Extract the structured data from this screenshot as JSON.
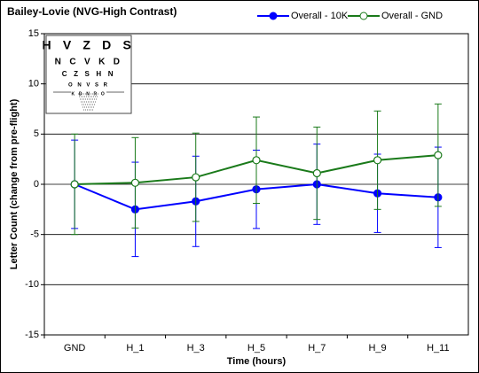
{
  "chart_data": {
    "type": "line",
    "title": "Bailey-Lovie (NVG-High Contrast)",
    "xlabel": "Time (hours)",
    "ylabel": "Letter Count (change from pre-flight)",
    "inset_text": [
      "H V Z D S",
      "N C V K D",
      "C Z S H N",
      "O N V S R",
      "K D N R O"
    ],
    "categories": [
      "GND",
      "H_1",
      "H_3",
      "H_5",
      "H_7",
      "H_9",
      "H_11"
    ],
    "series": [
      {
        "name": "Overall - 10K",
        "color": "#0000ff",
        "marker_fill": "#0000ff",
        "values": [
          0,
          -2.5,
          -1.7,
          -0.5,
          0,
          -0.9,
          -1.3
        ],
        "errors": [
          4.4,
          4.7,
          4.5,
          3.9,
          4.0,
          3.9,
          5.0
        ]
      },
      {
        "name": "Overall - GND",
        "color": "#1a7a1a",
        "marker_fill": "#ffffff",
        "values": [
          0,
          0.15,
          0.7,
          2.4,
          1.1,
          2.4,
          2.9
        ],
        "errors": [
          5.0,
          4.5,
          4.4,
          4.3,
          4.6,
          4.9,
          5.1
        ]
      }
    ],
    "ylim": [
      -15,
      15
    ],
    "yticks": [
      -15,
      -10,
      -5,
      0,
      5,
      10,
      15
    ],
    "grid": true
  }
}
